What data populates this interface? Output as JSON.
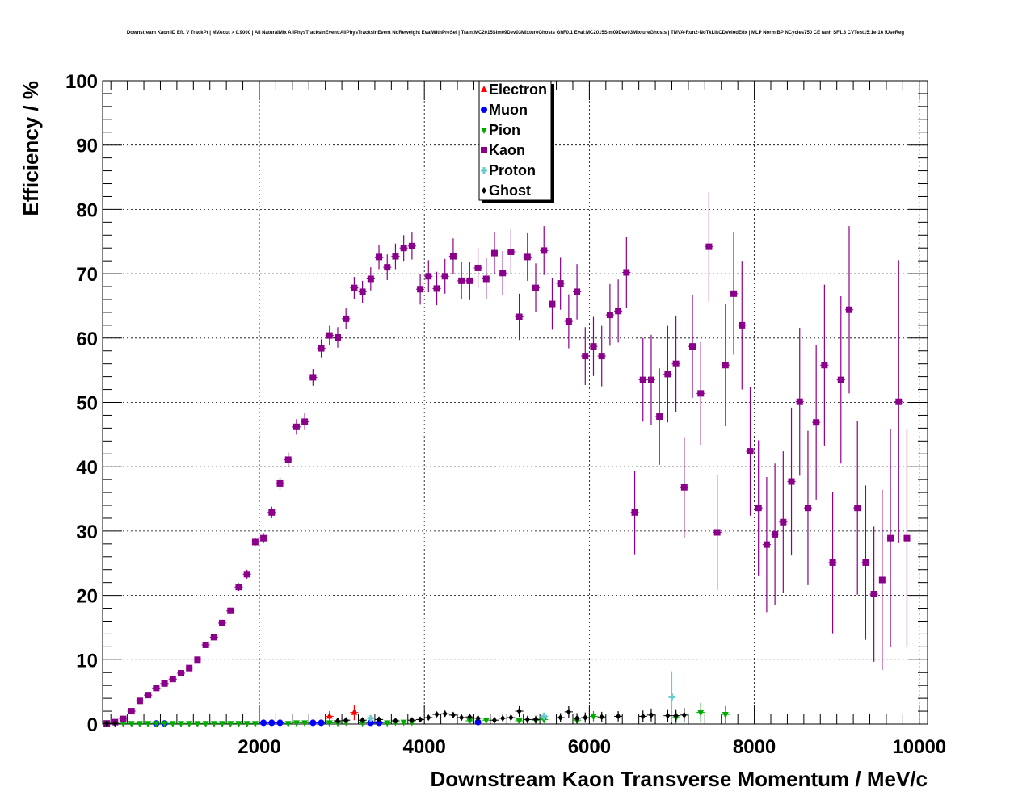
{
  "chart_data": {
    "type": "scatter",
    "title": "Downstream Kaon ID Eff. V TrackPt | MVAout > 0.9000 | All NaturalMix AllPhysTracksInEvent:AllPhysTracksInEvent NoReweight EvalWithPreSel | Train:MC2015Sim09Dev03MixtureGhosts GhF0.1 Eval:MC2015Sim09Dev03MixtureGhosts | TMVA-Run2-NoTkLikCDVelodEdx | MLP Norm BP NCycles750 CE tanh SF1.3 CVTest15:1e-16 !UseReg",
    "xlabel": "Downstream Kaon Transverse Momentum / MeV/c",
    "ylabel": "Efficiency / %",
    "xlim": [
      100,
      10100
    ],
    "ylim": [
      0,
      100
    ],
    "x_ticks": [
      2000,
      4000,
      6000,
      8000,
      10000
    ],
    "y_ticks": [
      0,
      10,
      20,
      30,
      40,
      50,
      60,
      70,
      80,
      90,
      100
    ],
    "grid": true,
    "legend_position": "top-center",
    "bin_half_width": 50,
    "series": [
      {
        "name": "Electron",
        "color": "#ff0000",
        "marker": "triangle-up",
        "points": [
          [
            2850,
            1.2,
            0.8
          ],
          [
            3150,
            1.8,
            1.2
          ]
        ]
      },
      {
        "name": "Muon",
        "color": "#0000ff",
        "marker": "circle",
        "points": [
          [
            750,
            0.1,
            0.1
          ],
          [
            850,
            0.1,
            0.1
          ],
          [
            2050,
            0.2,
            0.1
          ],
          [
            2150,
            0.2,
            0.1
          ],
          [
            2250,
            0.2,
            0.1
          ],
          [
            2650,
            0.2,
            0.1
          ],
          [
            2750,
            0.2,
            0.1
          ],
          [
            3350,
            0.2,
            0.1
          ],
          [
            3450,
            0.2,
            0.1
          ],
          [
            4650,
            0.3,
            0.2
          ]
        ]
      },
      {
        "name": "Pion",
        "color": "#00aa00",
        "marker": "triangle-down",
        "points": [
          [
            350,
            0.1,
            0.05
          ],
          [
            450,
            0.1,
            0.05
          ],
          [
            550,
            0.1,
            0.05
          ],
          [
            650,
            0.1,
            0.05
          ],
          [
            750,
            0.1,
            0.05
          ],
          [
            850,
            0.1,
            0.05
          ],
          [
            950,
            0.1,
            0.05
          ],
          [
            1050,
            0.1,
            0.05
          ],
          [
            1150,
            0.1,
            0.05
          ],
          [
            1250,
            0.1,
            0.05
          ],
          [
            1350,
            0.1,
            0.05
          ],
          [
            1450,
            0.1,
            0.05
          ],
          [
            1550,
            0.1,
            0.05
          ],
          [
            1650,
            0.1,
            0.05
          ],
          [
            1750,
            0.1,
            0.05
          ],
          [
            1850,
            0.1,
            0.05
          ],
          [
            1950,
            0.1,
            0.05
          ],
          [
            2350,
            0.1,
            0.05
          ],
          [
            2450,
            0.2,
            0.1
          ],
          [
            2550,
            0.2,
            0.1
          ],
          [
            2850,
            0.2,
            0.1
          ],
          [
            2950,
            0.2,
            0.1
          ],
          [
            3050,
            0.3,
            0.1
          ],
          [
            3250,
            0.2,
            0.1
          ],
          [
            3550,
            0.2,
            0.1
          ],
          [
            3650,
            0.3,
            0.1
          ],
          [
            3750,
            0.3,
            0.2
          ],
          [
            3850,
            0.3,
            0.2
          ],
          [
            4550,
            0.5,
            0.3
          ],
          [
            4750,
            0.6,
            0.3
          ],
          [
            5150,
            0.5,
            0.3
          ],
          [
            5350,
            0.6,
            0.4
          ],
          [
            5450,
            0.7,
            0.5
          ],
          [
            5850,
            0.6,
            0.5
          ],
          [
            6050,
            1.2,
            0.8
          ],
          [
            7050,
            1.0,
            0.9
          ],
          [
            7350,
            1.8,
            1.5
          ],
          [
            7650,
            1.5,
            1.4
          ]
        ]
      },
      {
        "name": "Kaon",
        "color": "#8b008b",
        "marker": "square",
        "points": [
          [
            150,
            0.1,
            0.1
          ],
          [
            250,
            0.3,
            0.2
          ],
          [
            350,
            0.8,
            0.3
          ],
          [
            450,
            2.0,
            0.3
          ],
          [
            550,
            3.6,
            0.3
          ],
          [
            650,
            4.5,
            0.3
          ],
          [
            750,
            5.6,
            0.3
          ],
          [
            850,
            6.3,
            0.3
          ],
          [
            950,
            7.0,
            0.3
          ],
          [
            1050,
            7.9,
            0.3
          ],
          [
            1150,
            8.7,
            0.3
          ],
          [
            1250,
            10.0,
            0.4
          ],
          [
            1350,
            12.3,
            0.4
          ],
          [
            1450,
            13.5,
            0.4
          ],
          [
            1550,
            15.7,
            0.5
          ],
          [
            1650,
            17.6,
            0.5
          ],
          [
            1750,
            21.3,
            0.6
          ],
          [
            1850,
            23.3,
            0.7
          ],
          [
            1950,
            28.3,
            0.7
          ],
          [
            2050,
            28.9,
            0.8
          ],
          [
            2150,
            32.9,
            0.9
          ],
          [
            2250,
            37.4,
            1.0
          ],
          [
            2350,
            41.1,
            1.1
          ],
          [
            2450,
            46.2,
            1.2
          ],
          [
            2550,
            47.0,
            1.3
          ],
          [
            2650,
            53.9,
            1.3
          ],
          [
            2750,
            58.4,
            1.4
          ],
          [
            2850,
            60.4,
            1.5
          ],
          [
            2950,
            60.1,
            1.6
          ],
          [
            3050,
            63.0,
            1.6
          ],
          [
            3150,
            67.8,
            1.7
          ],
          [
            3250,
            67.2,
            1.7
          ],
          [
            3350,
            69.2,
            1.8
          ],
          [
            3450,
            72.6,
            1.9
          ],
          [
            3550,
            71.0,
            2.0
          ],
          [
            3650,
            72.7,
            2.0
          ],
          [
            3750,
            74.0,
            2.0
          ],
          [
            3850,
            74.3,
            2.1
          ],
          [
            3950,
            67.6,
            2.4
          ],
          [
            4050,
            69.6,
            2.5
          ],
          [
            4150,
            67.7,
            2.6
          ],
          [
            4250,
            69.6,
            2.7
          ],
          [
            4350,
            72.7,
            2.8
          ],
          [
            4450,
            68.9,
            2.9
          ],
          [
            4550,
            68.9,
            3.0
          ],
          [
            4650,
            70.9,
            3.1
          ],
          [
            4750,
            69.2,
            3.2
          ],
          [
            4850,
            73.2,
            3.3
          ],
          [
            4950,
            70.1,
            3.4
          ],
          [
            5050,
            73.4,
            3.5
          ],
          [
            5150,
            63.3,
            3.6
          ],
          [
            5250,
            72.6,
            3.7
          ],
          [
            5350,
            67.8,
            3.8
          ],
          [
            5450,
            73.6,
            3.8
          ],
          [
            5550,
            65.3,
            4.0
          ],
          [
            5650,
            68.5,
            4.1
          ],
          [
            5750,
            62.6,
            4.2
          ],
          [
            5850,
            67.2,
            4.3
          ],
          [
            5950,
            57.2,
            4.5
          ],
          [
            6050,
            58.7,
            4.6
          ],
          [
            6150,
            57.2,
            4.7
          ],
          [
            6250,
            63.6,
            4.8
          ],
          [
            6350,
            64.2,
            4.9
          ],
          [
            6450,
            70.2,
            5.5
          ],
          [
            6550,
            32.9,
            6.5
          ],
          [
            6650,
            53.5,
            6.5
          ],
          [
            6750,
            53.5,
            7.0
          ],
          [
            6850,
            47.8,
            7.5
          ],
          [
            6950,
            54.4,
            7.5
          ],
          [
            7050,
            56.0,
            7.5
          ],
          [
            7150,
            36.8,
            7.8
          ],
          [
            7250,
            58.7,
            8.0
          ],
          [
            7350,
            51.4,
            8.0
          ],
          [
            7450,
            74.2,
            8.5
          ],
          [
            7550,
            29.8,
            9.0
          ],
          [
            7650,
            55.8,
            9.5
          ],
          [
            7750,
            66.9,
            9.5
          ],
          [
            7850,
            62.0,
            10.0
          ],
          [
            7950,
            42.4,
            10.0
          ],
          [
            8050,
            33.6,
            10.5
          ],
          [
            8150,
            27.9,
            10.5
          ],
          [
            8250,
            29.5,
            11.0
          ],
          [
            8350,
            31.4,
            11.0
          ],
          [
            8450,
            37.7,
            11.5
          ],
          [
            8550,
            50.1,
            11.5
          ],
          [
            8650,
            33.6,
            12.0
          ],
          [
            8750,
            46.9,
            12.0
          ],
          [
            8850,
            55.8,
            12.5
          ],
          [
            8950,
            25.1,
            11.0
          ],
          [
            9050,
            53.5,
            13.0
          ],
          [
            9150,
            64.4,
            13.0
          ],
          [
            9250,
            33.6,
            13.5
          ],
          [
            9350,
            25.1,
            12.0
          ],
          [
            9450,
            20.2,
            10.5
          ],
          [
            9550,
            22.4,
            14.0
          ],
          [
            9650,
            28.9,
            17.0
          ],
          [
            9750,
            50.1,
            22.0
          ],
          [
            9850,
            28.9,
            17.0
          ]
        ]
      },
      {
        "name": "Proton",
        "color": "#66cccc",
        "marker": "cross",
        "points": [
          [
            3350,
            0.9,
            0.4
          ],
          [
            5450,
            1.2,
            0.6
          ],
          [
            7000,
            4.2,
            4.0
          ]
        ]
      },
      {
        "name": "Ghost",
        "color": "#000000",
        "marker": "diamond",
        "points": [
          [
            150,
            0.1,
            0.05
          ],
          [
            250,
            0.1,
            0.05
          ],
          [
            2950,
            0.5,
            0.2
          ],
          [
            3050,
            0.6,
            0.3
          ],
          [
            3250,
            0.6,
            0.3
          ],
          [
            3450,
            0.7,
            0.3
          ],
          [
            3650,
            0.5,
            0.3
          ],
          [
            3850,
            0.6,
            0.3
          ],
          [
            3950,
            0.7,
            0.3
          ],
          [
            4050,
            1.0,
            0.4
          ],
          [
            4150,
            1.5,
            0.4
          ],
          [
            4250,
            1.6,
            0.5
          ],
          [
            4350,
            1.4,
            0.5
          ],
          [
            4450,
            1.0,
            0.5
          ],
          [
            4550,
            1.1,
            0.5
          ],
          [
            4650,
            0.9,
            0.5
          ],
          [
            4850,
            0.6,
            0.5
          ],
          [
            4950,
            0.9,
            0.6
          ],
          [
            5050,
            1.0,
            0.6
          ],
          [
            5150,
            2.0,
            0.9
          ],
          [
            5250,
            0.7,
            0.6
          ],
          [
            5350,
            0.7,
            0.6
          ],
          [
            5650,
            1.0,
            0.7
          ],
          [
            5750,
            1.9,
            0.9
          ],
          [
            5850,
            0.9,
            0.8
          ],
          [
            5950,
            1.0,
            0.8
          ],
          [
            6150,
            1.1,
            0.8
          ],
          [
            6350,
            1.2,
            0.8
          ],
          [
            6650,
            1.2,
            0.9
          ],
          [
            6750,
            1.4,
            1.0
          ],
          [
            6950,
            1.3,
            1.0
          ],
          [
            7050,
            1.3,
            1.0
          ],
          [
            7150,
            1.4,
            1.1
          ]
        ]
      }
    ]
  }
}
